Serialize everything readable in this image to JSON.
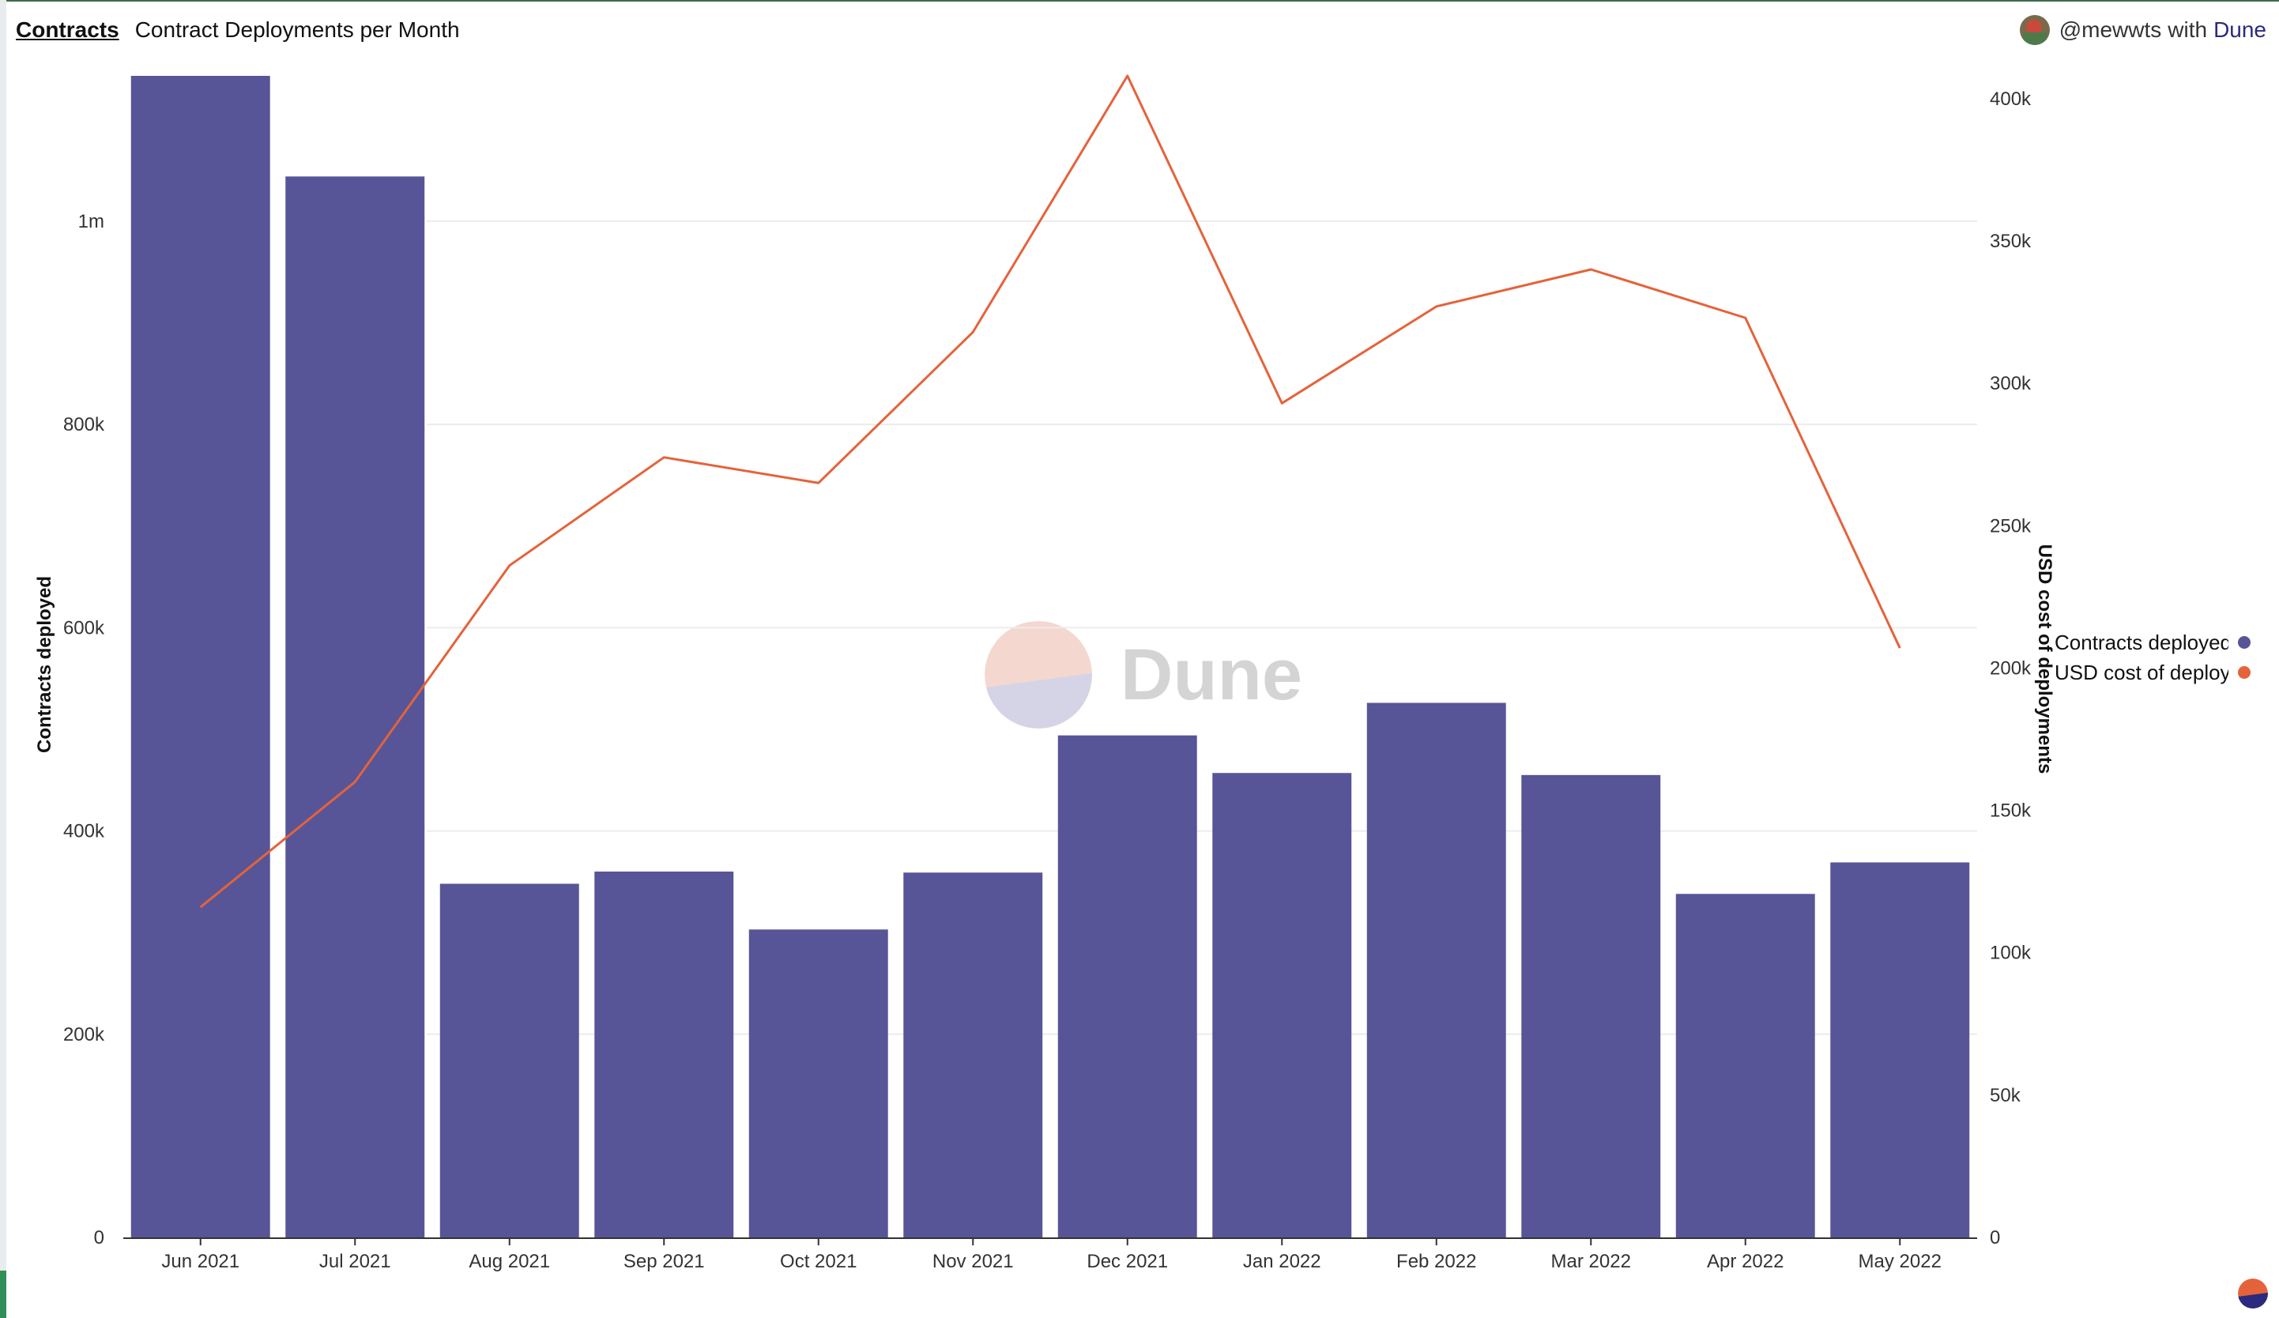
{
  "header": {
    "tab_label": "Contracts",
    "chart_title": "Contract Deployments per Month"
  },
  "attribution": {
    "user": "@mewwts",
    "with": "with",
    "brand": "Dune"
  },
  "watermark": {
    "text": "Dune"
  },
  "colors": {
    "bar": "#575597",
    "line": "#e4633a",
    "grid": "#ececec",
    "logo_top": "#f4d7cf",
    "logo_bottom": "#d5d4e6",
    "brand": "#2b2a7e"
  },
  "legend": [
    {
      "label": "Contracts deployed",
      "color": "#575597"
    },
    {
      "label": "USD cost of deployments",
      "color": "#e4633a"
    }
  ],
  "chart_data": {
    "type": "bar+line",
    "title": "Contract Deployments per Month",
    "categories": [
      "Jun 2021",
      "Jul 2021",
      "Aug 2021",
      "Sep 2021",
      "Oct 2021",
      "Nov 2021",
      "Dec 2021",
      "Jan 2022",
      "Feb 2022",
      "Mar 2022",
      "Apr 2022",
      "May 2022"
    ],
    "series": [
      {
        "name": "Contracts deployed",
        "type": "bar",
        "axis": "left",
        "values": [
          1143000,
          1044000,
          348000,
          360000,
          303000,
          359000,
          494000,
          457000,
          526000,
          455000,
          338000,
          369000
        ]
      },
      {
        "name": "USD cost of deployments",
        "type": "line",
        "axis": "right",
        "values": [
          116000,
          160000,
          236000,
          274000,
          265000,
          318000,
          408000,
          293000,
          327000,
          340000,
          323000,
          207000
        ]
      }
    ],
    "y_left": {
      "label": "Contracts deployed",
      "ticks": [
        0,
        200000,
        400000,
        600000,
        800000,
        1000000
      ],
      "tick_labels": [
        "0",
        "200k",
        "400k",
        "600k",
        "800k",
        "1m"
      ],
      "range": [
        0,
        1143000
      ]
    },
    "y_right": {
      "label": "USD cost of deployments",
      "ticks": [
        0,
        50000,
        100000,
        150000,
        200000,
        250000,
        300000,
        350000,
        400000
      ],
      "tick_labels": [
        "0",
        "50k",
        "100k",
        "150k",
        "200k",
        "250k",
        "300k",
        "350k",
        "400k"
      ],
      "range": [
        0,
        408000
      ]
    },
    "grid": true,
    "legend_position": "right"
  }
}
